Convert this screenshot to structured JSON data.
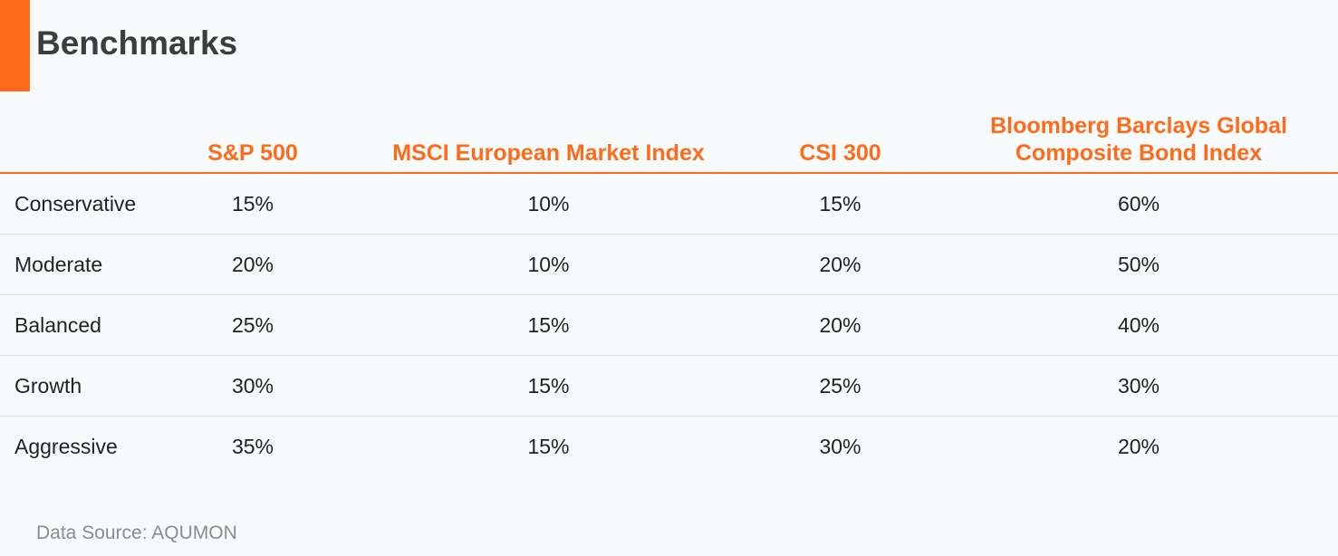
{
  "title": "Benchmarks",
  "accent_color": "#ff6b1a",
  "table": {
    "headers": [
      "",
      "S&P 500",
      "MSCI European Market Index",
      "CSI 300",
      "Bloomberg Barclays Global Composite Bond Index"
    ],
    "rows": [
      {
        "label": "Conservative",
        "values": [
          "15%",
          "10%",
          "15%",
          "60%"
        ]
      },
      {
        "label": "Moderate",
        "values": [
          "20%",
          "10%",
          "20%",
          "50%"
        ]
      },
      {
        "label": "Balanced",
        "values": [
          "25%",
          "15%",
          "20%",
          "40%"
        ]
      },
      {
        "label": "Growth",
        "values": [
          "30%",
          "15%",
          "25%",
          "30%"
        ]
      },
      {
        "label": "Aggressive",
        "values": [
          "35%",
          "15%",
          "30%",
          "20%"
        ]
      }
    ]
  },
  "source": "Data Source: AQUMON"
}
